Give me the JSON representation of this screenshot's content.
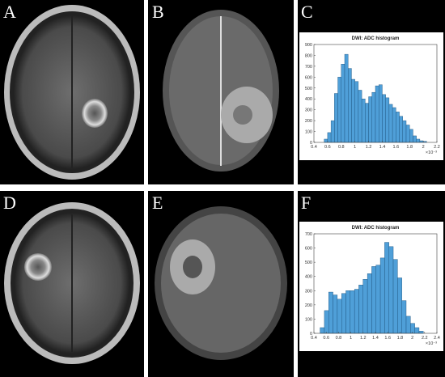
{
  "panel_labels": [
    "A",
    "B",
    "C",
    "D",
    "E",
    "F"
  ],
  "chart_data": [
    {
      "type": "histogram",
      "title": "DWI: ADC histogram",
      "x_exponent": "×10⁻³",
      "color": "#4f9fd8",
      "bins": [
        0.55,
        0.6,
        0.65,
        0.7,
        0.75,
        0.8,
        0.85,
        0.9,
        0.95,
        1.0,
        1.05,
        1.1,
        1.15,
        1.2,
        1.25,
        1.3,
        1.35,
        1.4,
        1.45,
        1.5,
        1.55,
        1.6,
        1.65,
        1.7,
        1.75,
        1.8,
        1.85,
        1.9,
        1.95,
        2.0,
        2.05
      ],
      "values": [
        30,
        90,
        200,
        450,
        600,
        720,
        810,
        680,
        580,
        560,
        480,
        400,
        360,
        420,
        460,
        520,
        530,
        440,
        410,
        350,
        320,
        280,
        240,
        200,
        160,
        120,
        60,
        30,
        15,
        10
      ],
      "xlim": [
        0.4,
        2.2
      ],
      "xticks": [
        0.4,
        0.6,
        0.8,
        1,
        1.2,
        1.4,
        1.6,
        1.8,
        2,
        2.2
      ],
      "ylim": [
        0,
        900
      ],
      "yticks": [
        0,
        100,
        200,
        300,
        400,
        500,
        600,
        700,
        800,
        900
      ]
    },
    {
      "type": "histogram",
      "title": "DWI: ADC histogram",
      "x_exponent": "×10⁻³",
      "color": "#4f9fd8",
      "bins": [
        0.5,
        0.57,
        0.64,
        0.71,
        0.78,
        0.85,
        0.92,
        0.99,
        1.06,
        1.13,
        1.2,
        1.27,
        1.34,
        1.41,
        1.48,
        1.55,
        1.62,
        1.69,
        1.76,
        1.83,
        1.9,
        1.97,
        2.04,
        2.11,
        2.18
      ],
      "values": [
        40,
        160,
        290,
        270,
        240,
        280,
        300,
        300,
        310,
        340,
        380,
        420,
        470,
        480,
        530,
        640,
        610,
        520,
        390,
        230,
        120,
        70,
        40,
        15
      ],
      "xlim": [
        0.4,
        2.4
      ],
      "xticks": [
        0.4,
        0.6,
        0.8,
        1,
        1.2,
        1.4,
        1.6,
        1.8,
        2,
        2.2,
        2.4
      ],
      "ylim": [
        0,
        700
      ],
      "yticks": [
        0,
        100,
        200,
        300,
        400,
        500,
        600,
        700
      ]
    }
  ]
}
